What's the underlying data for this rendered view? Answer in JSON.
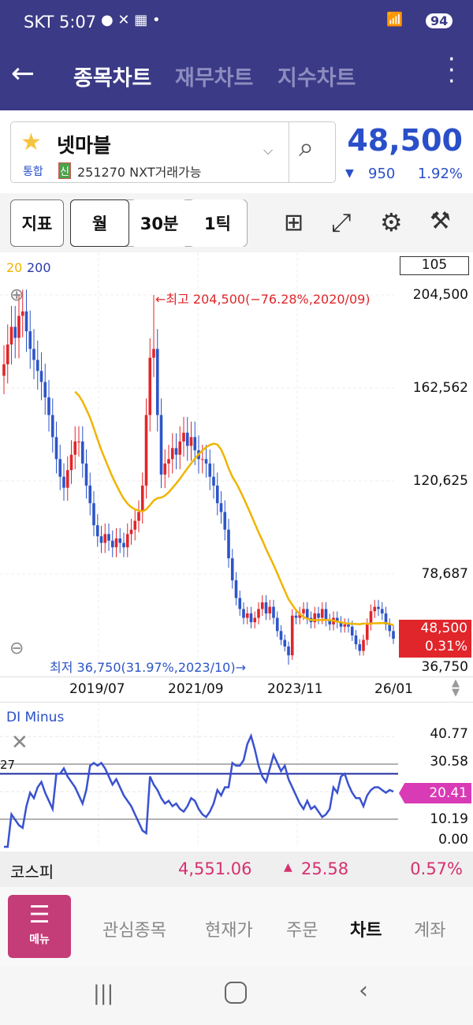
{
  "status": {
    "carrier": "SKT",
    "time": "5:07",
    "battery": "94"
  },
  "header": {
    "tabs": [
      "종목차트",
      "재무차트",
      "지수차트"
    ]
  },
  "stock": {
    "name": "넷마블",
    "market": "통합",
    "badge": "신",
    "code_info": "251270 NXT거래가능",
    "price": "48,500",
    "change": "950",
    "change_pct": "1.92%",
    "direction": "down",
    "color": "#2a4fc9"
  },
  "toolbar": {
    "indicator": "지표",
    "period": "월",
    "minute": "30분",
    "tick": "1틱"
  },
  "chart": {
    "ma_legend": {
      "ma20": "20",
      "ma200": "200"
    },
    "count": "105",
    "high_note": "최고 204,500(−76.28%,2020/09)",
    "low_note": "최저 36,750(31.97%,2023/10)",
    "y_labels": [
      "204,500",
      "162,562",
      "120,625",
      "78,687",
      "36,750"
    ],
    "current_label": "48,500",
    "current_pct": "0.31%",
    "x_labels": [
      "2019/07",
      "2021/09",
      "2023/11",
      "26/01"
    ],
    "ylim": [
      36750,
      204500
    ],
    "closes_thousands": [
      173,
      182,
      190,
      185,
      195,
      197,
      188,
      180,
      175,
      170,
      165,
      158,
      150,
      140,
      130,
      122,
      117,
      125,
      132,
      138,
      138,
      128,
      118,
      110,
      100,
      95,
      92,
      96,
      93,
      90,
      94,
      92,
      90,
      96,
      98,
      102,
      106,
      118,
      150,
      176,
      180,
      150,
      123,
      128,
      130,
      135,
      132,
      138,
      142,
      136,
      140,
      134,
      130,
      130,
      128,
      122,
      118,
      110,
      106,
      98,
      85,
      75,
      67,
      62,
      58,
      60,
      56,
      58,
      62,
      65,
      60,
      63,
      58,
      52,
      48,
      45,
      41,
      59,
      58,
      60,
      62,
      58,
      56,
      60,
      58,
      62,
      57,
      55,
      58,
      56,
      54,
      55,
      54,
      50,
      46,
      43,
      48,
      55,
      61,
      63,
      62,
      60,
      55,
      52,
      48.5
    ],
    "colors": {
      "up": "#e0262b",
      "down": "#2d55c8",
      "ma20": "#f0b400"
    }
  },
  "di": {
    "title": "DI Minus",
    "ref_label": "27",
    "ref": 27,
    "y_labels": [
      "40.77",
      "30.58",
      "10.19",
      "0.00"
    ],
    "current": "20.41",
    "values": [
      0,
      0,
      12,
      10,
      8,
      7,
      15,
      20,
      18,
      22,
      24,
      20,
      17,
      14,
      27,
      27,
      29,
      26,
      24,
      22,
      19,
      16,
      21,
      30,
      31,
      30,
      31,
      29,
      26,
      23,
      25,
      22,
      19,
      17,
      15,
      12,
      9,
      6,
      5,
      26,
      23,
      21,
      18,
      16,
      17,
      15,
      16,
      14,
      13,
      15,
      18,
      17,
      14,
      12,
      11,
      13,
      16,
      21,
      19,
      22,
      22,
      31,
      30,
      30,
      32,
      38,
      41,
      36,
      30,
      26,
      24,
      29,
      34,
      31,
      28,
      30,
      25,
      22,
      19,
      16,
      14,
      17,
      14,
      15,
      13,
      11,
      12,
      14,
      22,
      20,
      26,
      27,
      23,
      20,
      18,
      18,
      15,
      19,
      21,
      22,
      22,
      21,
      20,
      21,
      20.41
    ]
  },
  "kospi": {
    "label": "코스피",
    "value": "4,551.06",
    "change": "25.58",
    "pct": "0.57%"
  },
  "nav": {
    "menu": "메뉴",
    "items": [
      "관심종목",
      "현재가",
      "주문",
      "차트",
      "계좌"
    ],
    "active": 3
  }
}
